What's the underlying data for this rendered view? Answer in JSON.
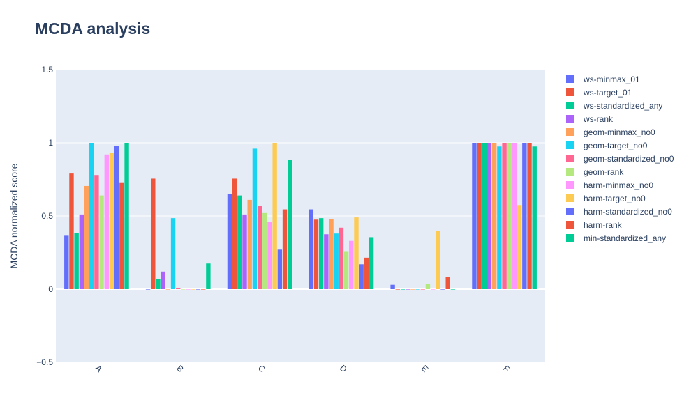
{
  "chart_data": {
    "type": "bar",
    "title": "MCDA analysis",
    "xlabel": "",
    "ylabel": "MCDA normalized score",
    "ylim": [
      -0.5,
      1.5
    ],
    "yticks": [
      -0.5,
      0,
      0.5,
      1,
      1.5
    ],
    "ytick_labels": [
      "−0.5",
      "0",
      "0.5",
      "1",
      "1.5"
    ],
    "grid": true,
    "legend_position": "right",
    "categories": [
      "A",
      "B",
      "C",
      "D",
      "E",
      "F"
    ],
    "series": [
      {
        "name": "ws-minmax_01",
        "color": "#636efa",
        "values": [
          0.365,
          0.0,
          0.65,
          0.545,
          0.03,
          1.0
        ]
      },
      {
        "name": "ws-target_01",
        "color": "#ef553b",
        "values": [
          0.79,
          0.755,
          0.755,
          0.475,
          0.0,
          1.0
        ]
      },
      {
        "name": "ws-standardized_any",
        "color": "#00cc96",
        "values": [
          0.385,
          0.07,
          0.64,
          0.485,
          0.0,
          1.0
        ]
      },
      {
        "name": "ws-rank",
        "color": "#ab63fa",
        "values": [
          0.51,
          0.12,
          0.51,
          0.375,
          0.0,
          1.0
        ]
      },
      {
        "name": "geom-minmax_no0",
        "color": "#ffa15a",
        "values": [
          0.705,
          0.0,
          0.61,
          0.48,
          0.0,
          1.0
        ]
      },
      {
        "name": "geom-target_no0",
        "color": "#19d3f3",
        "values": [
          1.0,
          0.485,
          0.96,
          0.38,
          0.0,
          0.975
        ]
      },
      {
        "name": "geom-standardized_no0",
        "color": "#ff6692",
        "values": [
          0.78,
          0.005,
          0.57,
          0.42,
          0.0,
          1.0
        ]
      },
      {
        "name": "geom-rank",
        "color": "#b6e880",
        "values": [
          0.64,
          0.0,
          0.52,
          0.255,
          0.035,
          1.0
        ]
      },
      {
        "name": "harm-minmax_no0",
        "color": "#ff97ff",
        "values": [
          0.92,
          0.0,
          0.46,
          0.33,
          0.0,
          1.0
        ]
      },
      {
        "name": "harm-target_no0",
        "color": "#fecb52",
        "values": [
          0.93,
          0.0,
          1.0,
          0.49,
          0.4,
          0.575
        ]
      },
      {
        "name": "harm-standardized_no0",
        "color": "#636efa",
        "values": [
          0.98,
          0.0,
          0.27,
          0.17,
          0.0,
          1.0
        ]
      },
      {
        "name": "harm-rank",
        "color": "#ef553b",
        "values": [
          0.73,
          0.0,
          0.545,
          0.215,
          0.085,
          1.0
        ]
      },
      {
        "name": "min-standardized_any",
        "color": "#00cc96",
        "values": [
          1.0,
          0.175,
          0.885,
          0.355,
          0.0,
          0.975
        ]
      }
    ]
  },
  "colors": {
    "plot_background": "#e5ecf6",
    "grid": "#ffffff",
    "text": "#2a3f5f"
  }
}
